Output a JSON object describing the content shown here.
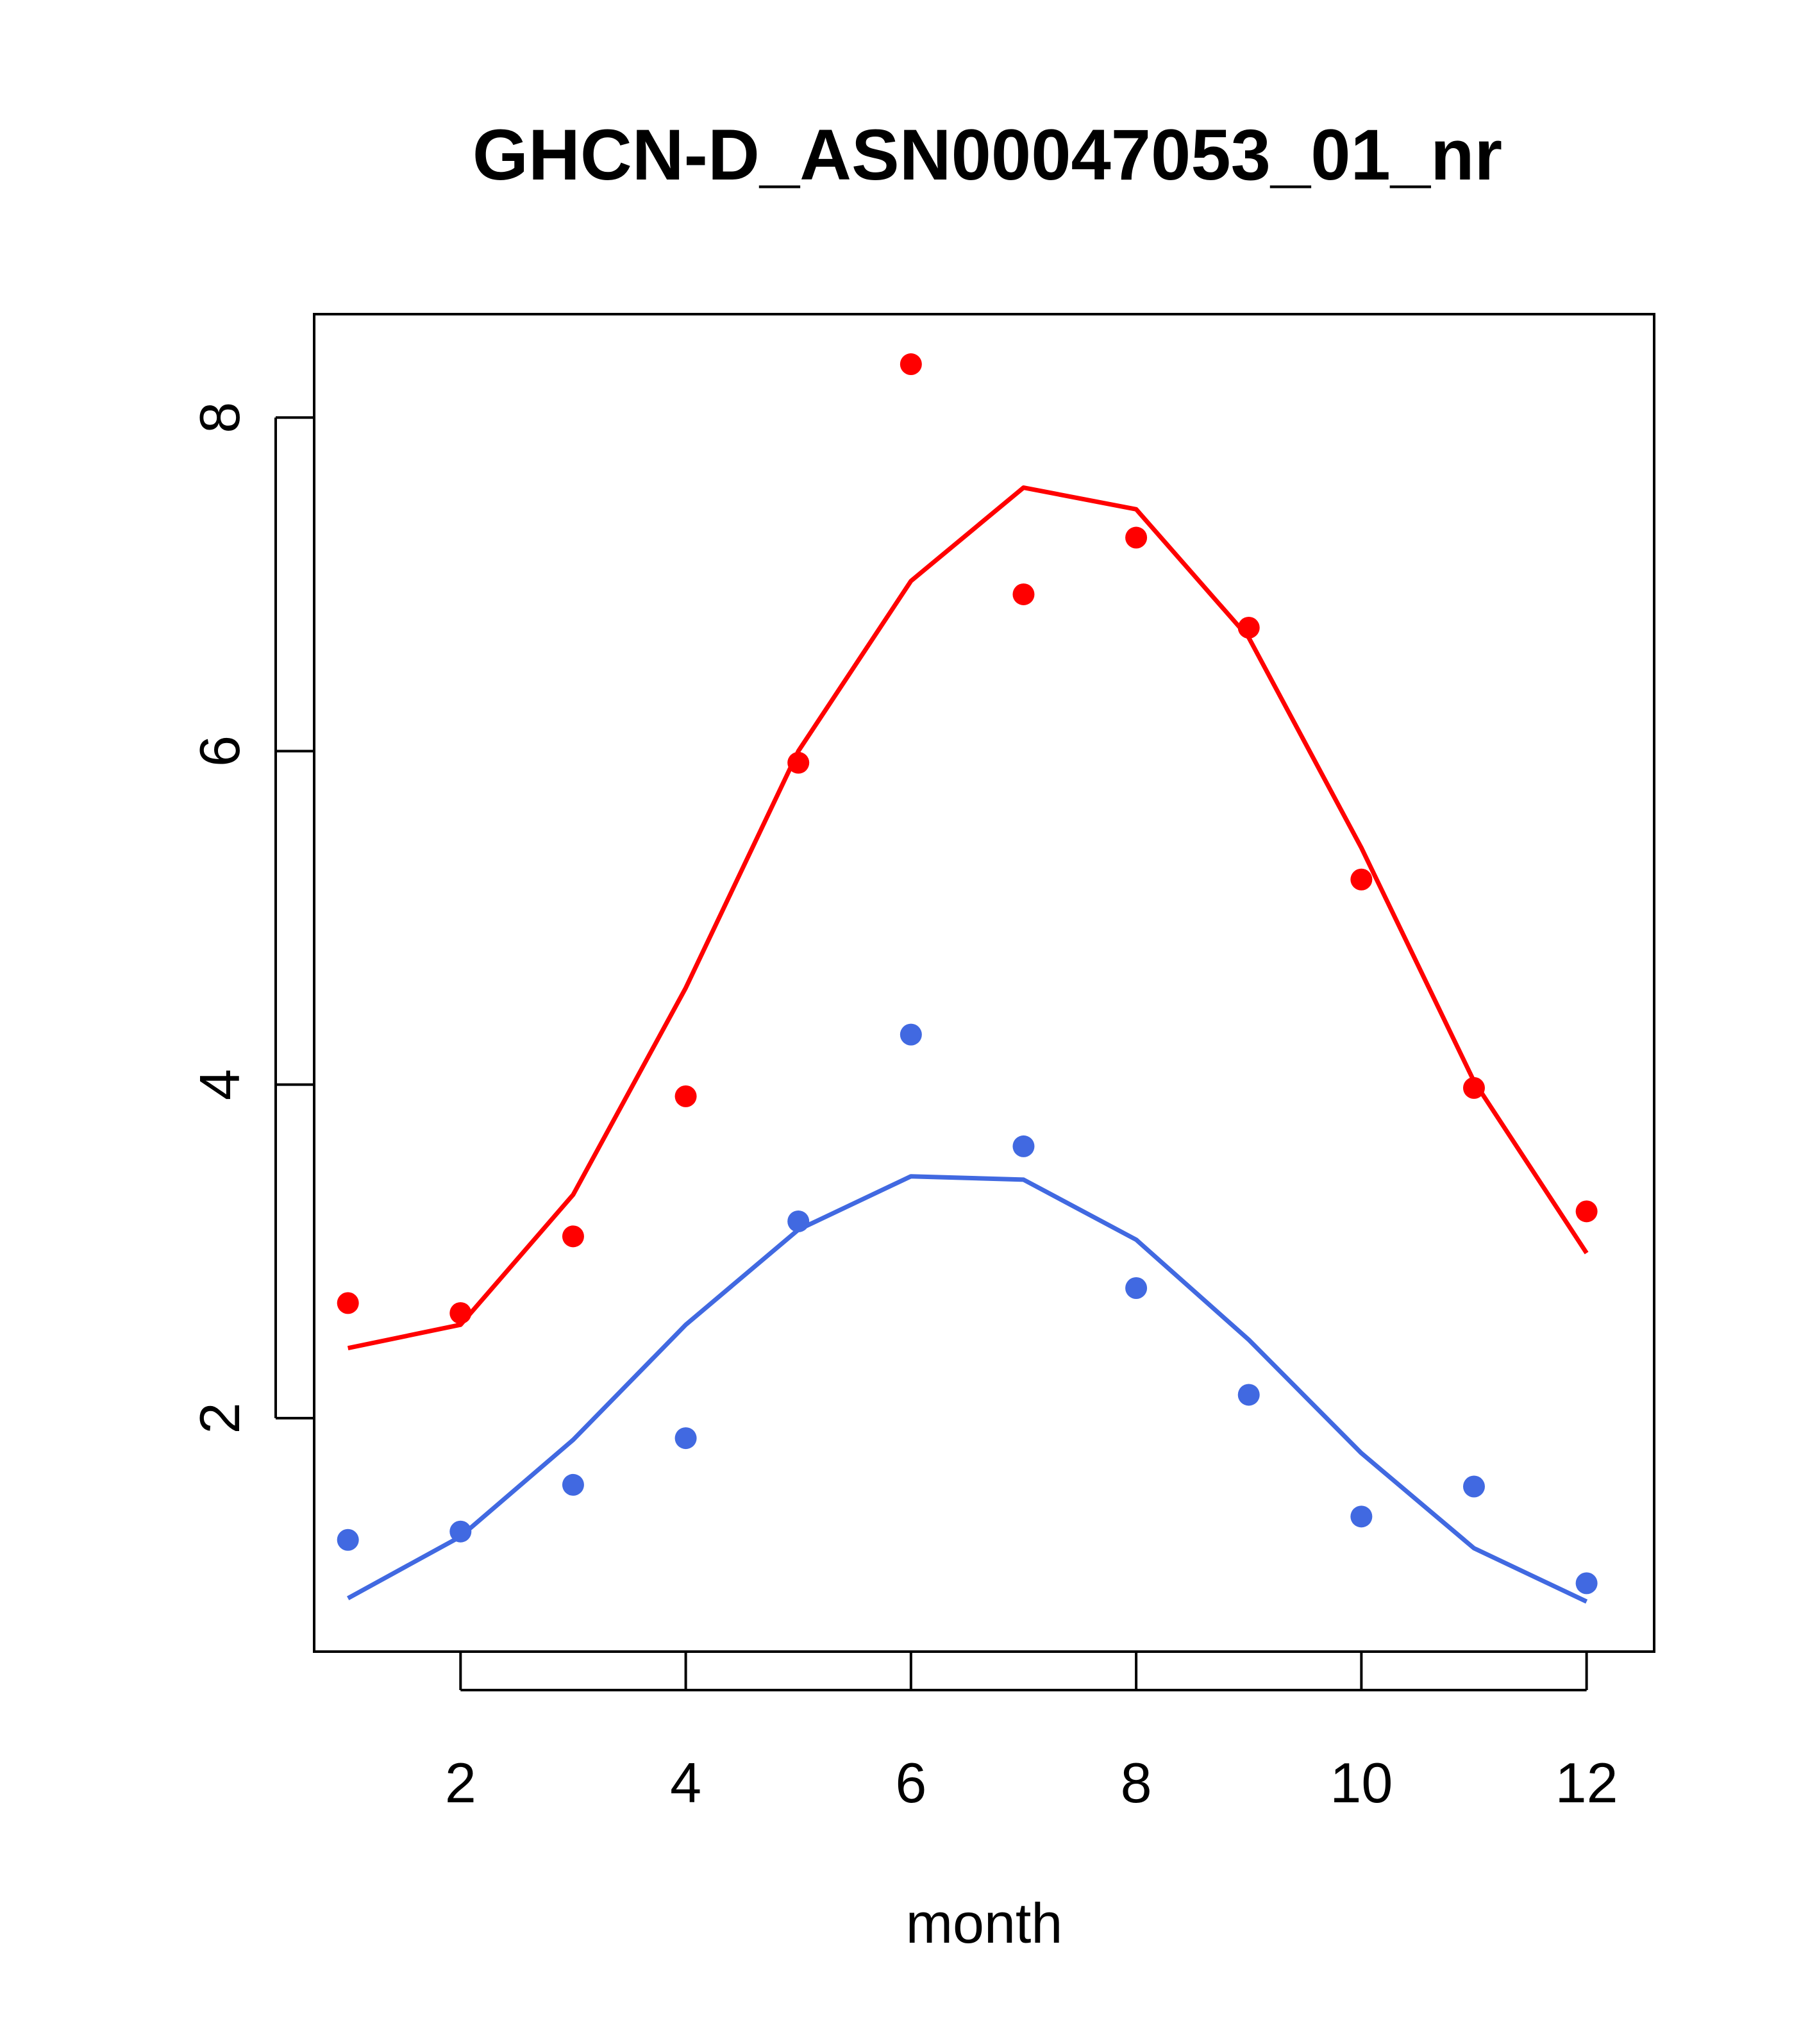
{
  "chart_data": {
    "type": "line",
    "title": "GHCN-D_ASN00047053_01_nr",
    "xlabel": "month",
    "ylabel": "",
    "xlim": [
      0.7,
      12.6
    ],
    "ylim": [
      0.6,
      8.62
    ],
    "xticks": [
      2,
      4,
      6,
      8,
      10,
      12
    ],
    "yticks": [
      2,
      4,
      6,
      8
    ],
    "grid": false,
    "series": [
      {
        "color": "#ff0000",
        "points": [
          2.69,
          2.63,
          3.09,
          3.93,
          5.93,
          8.32,
          6.94,
          7.28,
          6.74,
          5.23,
          3.98,
          3.24
        ],
        "line": [
          2.42,
          2.56,
          3.34,
          4.58,
          6.0,
          7.02,
          7.58,
          7.45,
          6.68,
          5.42,
          4.02,
          2.99
        ]
      },
      {
        "color": "#4169e1",
        "points": [
          1.27,
          1.32,
          1.6,
          1.88,
          3.18,
          4.3,
          3.63,
          2.78,
          2.14,
          1.41,
          1.59,
          1.01
        ],
        "line": [
          0.92,
          1.29,
          1.87,
          2.56,
          3.13,
          3.45,
          3.43,
          3.07,
          2.47,
          1.79,
          1.22,
          0.9
        ]
      }
    ],
    "x": [
      1,
      2,
      3,
      4,
      5,
      6,
      7,
      8,
      9,
      10,
      11,
      12
    ]
  }
}
